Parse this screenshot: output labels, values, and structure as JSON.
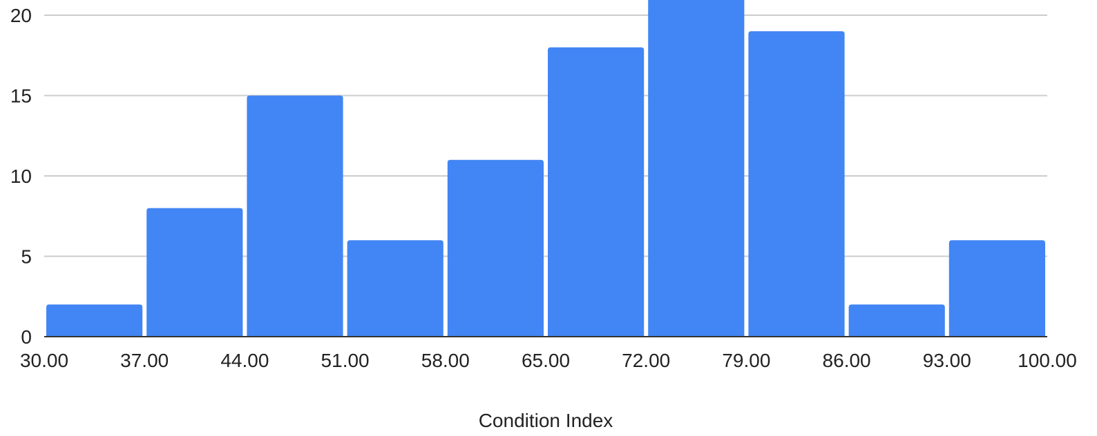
{
  "chart_data": {
    "type": "bar",
    "subtype": "histogram",
    "xlabel": "Condition Index",
    "ylabel": "",
    "bin_edges": [
      30,
      37,
      44,
      51,
      58,
      65,
      72,
      79,
      86,
      93,
      100
    ],
    "x_tick_labels": [
      "30.00",
      "37.00",
      "44.00",
      "51.00",
      "58.00",
      "65.00",
      "72.00",
      "79.00",
      "86.00",
      "93.00",
      "100.00"
    ],
    "values": [
      2,
      8,
      15,
      6,
      11,
      18,
      21,
      19,
      2,
      6
    ],
    "ylim": [
      0,
      20
    ],
    "y_ticks": [
      0,
      5,
      10,
      15,
      20
    ],
    "grid": true,
    "legend": "none",
    "colors": {
      "bar": "#4285F4",
      "grid": "#CCCCCC",
      "baseline": "#333333",
      "text": "#222222"
    }
  }
}
